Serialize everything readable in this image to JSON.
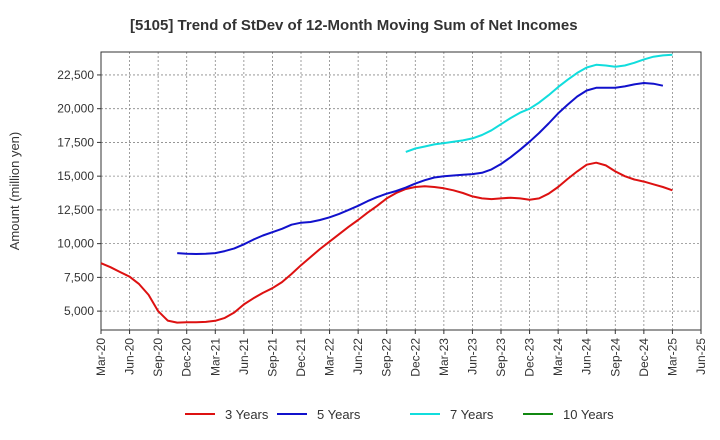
{
  "chart_data": {
    "type": "line",
    "title": "[5105]  Trend of StDev of 12-Month Moving Sum of Net Incomes",
    "ylabel": "Amount (million yen)",
    "xlabel": "",
    "ylim": [
      3600,
      24200
    ],
    "y_ticks": [
      5000,
      7500,
      10000,
      12500,
      15000,
      17500,
      20000,
      22500
    ],
    "y_tick_labels": [
      "5,000",
      "7,500",
      "10,000",
      "12,500",
      "15,000",
      "17,500",
      "20,000",
      "22,500"
    ],
    "x_start": "Mar-20",
    "x_end": "Jun-25",
    "x_tick_labels": [
      "Mar-20",
      "Jun-20",
      "Sep-20",
      "Dec-20",
      "Mar-21",
      "Jun-21",
      "Sep-21",
      "Dec-21",
      "Mar-22",
      "Jun-22",
      "Sep-22",
      "Dec-22",
      "Mar-23",
      "Jun-23",
      "Sep-23",
      "Dec-23",
      "Mar-24",
      "Jun-24",
      "Sep-24",
      "Dec-24",
      "Mar-25",
      "Jun-25"
    ],
    "grid": true,
    "legend_position": "bottom",
    "series": [
      {
        "name": "3 Years",
        "color": "#dd1111",
        "start": "Mar-20",
        "values": [
          8550,
          8250,
          7900,
          7550,
          7000,
          6200,
          5000,
          4300,
          4150,
          4180,
          4180,
          4200,
          4280,
          4500,
          4900,
          5500,
          5950,
          6350,
          6700,
          7150,
          7750,
          8400,
          9000,
          9600,
          10150,
          10700,
          11250,
          11750,
          12300,
          12800,
          13350,
          13750,
          14050,
          14200,
          14250,
          14200,
          14100,
          13950,
          13750,
          13500,
          13350,
          13300,
          13350,
          13400,
          13350,
          13250,
          13350,
          13700,
          14200,
          14800,
          15350,
          15850,
          16000,
          15800,
          15350,
          15000,
          14750,
          14600,
          14400,
          14200,
          13950
        ]
      },
      {
        "name": "5 Years",
        "color": "#1111cc",
        "start": "Nov-20",
        "values": [
          9300,
          9250,
          9230,
          9250,
          9300,
          9450,
          9650,
          9950,
          10300,
          10600,
          10850,
          11100,
          11400,
          11550,
          11600,
          11750,
          11950,
          12200,
          12500,
          12800,
          13150,
          13450,
          13700,
          13900,
          14150,
          14450,
          14700,
          14900,
          15000,
          15050,
          15100,
          15150,
          15250,
          15500,
          15900,
          16400,
          16950,
          17550,
          18200,
          18900,
          19650,
          20300,
          20900,
          21350,
          21550,
          21550,
          21550,
          21650,
          21800,
          21900,
          21850,
          21700
        ]
      },
      {
        "name": "7 Years",
        "color": "#11dddd",
        "start": "Nov-22",
        "values": [
          16800,
          17050,
          17200,
          17350,
          17450,
          17550,
          17650,
          17800,
          18050,
          18400,
          18850,
          19300,
          19700,
          20000,
          20450,
          21000,
          21600,
          22150,
          22650,
          23050,
          23250,
          23200,
          23100,
          23200,
          23400,
          23650,
          23850,
          23950,
          24000
        ]
      },
      {
        "name": "10 Years",
        "color": "#118811",
        "start": "",
        "values": []
      }
    ]
  }
}
